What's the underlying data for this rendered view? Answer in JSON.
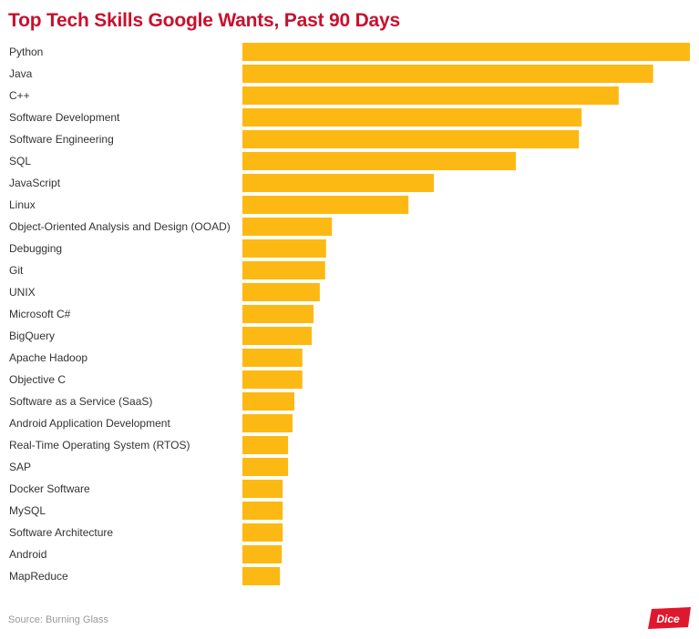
{
  "chart_data": {
    "type": "bar",
    "orientation": "horizontal",
    "title": "Top Tech Skills Google Wants, Past 90 Days",
    "xlabel": "",
    "ylabel": "",
    "grid": false,
    "legend": "none",
    "xlim": [
      0,
      100
    ],
    "categories": [
      "Python",
      "Java",
      "C++",
      "Software Development",
      "Software Engineering",
      "SQL",
      "JavaScript",
      "Linux",
      "Object-Oriented Analysis and Design (OOAD)",
      "Debugging",
      "Git",
      "UNIX",
      "Microsoft C#",
      "BigQuery",
      "Apache Hadoop",
      "Objective C",
      "Software as a Service (SaaS)",
      "Android Application Development",
      "Real-Time Operating System (RTOS)",
      "SAP",
      "Docker Software",
      "MySQL",
      "Software Architecture",
      "Android",
      "MapReduce"
    ],
    "values": [
      100,
      91.8,
      84.1,
      75.8,
      75.2,
      61.1,
      42.8,
      37.1,
      20.0,
      18.7,
      18.5,
      17.3,
      15.9,
      15.5,
      13.4,
      13.4,
      11.6,
      11.2,
      10.2,
      10.2,
      9.0,
      9.0,
      9.0,
      8.8,
      8.4
    ],
    "bar_color": "#fdb913"
  },
  "footer": {
    "source": "Source: Burning Glass",
    "logo_text": "Dice",
    "logo_color": "#e0182d"
  }
}
